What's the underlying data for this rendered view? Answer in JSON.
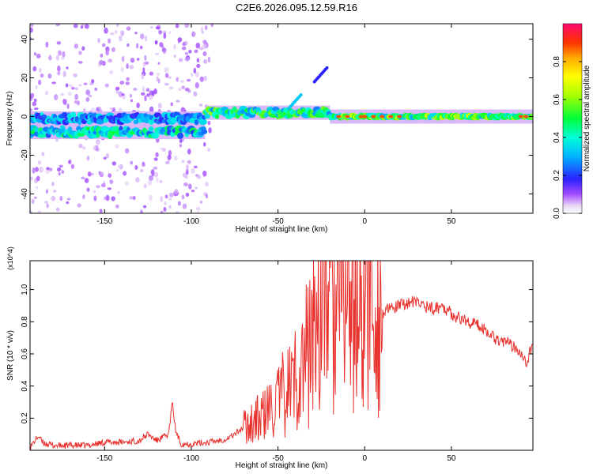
{
  "title": "C2E6.2026.095.12.59.R16",
  "colors": {
    "snr_line": "#e8322e",
    "axis": "#000000",
    "background": "#ffffff"
  },
  "chart_data": [
    {
      "type": "heatmap",
      "name": "spectrogram",
      "xlabel": "Height of straight line (km)",
      "ylabel": "Frequency (Hz)",
      "xlim": [
        -193,
        97
      ],
      "ylim": [
        -50,
        48
      ],
      "xticks": [
        -150,
        -100,
        -50,
        0,
        50
      ],
      "yticks": [
        -40,
        -20,
        0,
        20,
        40
      ],
      "colorbar": {
        "label": "Normalized spectral amplitude",
        "range": [
          0.0,
          1.0
        ],
        "ticks": [
          0.0,
          0.2,
          0.4,
          0.6,
          0.8
        ]
      },
      "bands": [
        {
          "from": -193,
          "to": -92,
          "freq": -8,
          "amplitude": 0.42,
          "note": "lower echo band"
        },
        {
          "from": -193,
          "to": -92,
          "freq": -1,
          "amplitude": 0.33,
          "note": "upper echo band"
        },
        {
          "from": -92,
          "to": -20,
          "freq": 2,
          "amplitude": 0.5,
          "note": "transition band"
        },
        {
          "from": -20,
          "to": 97,
          "freq": 0,
          "amplitude": 0.55,
          "note": "steady band"
        }
      ],
      "features": [
        {
          "x": -25,
          "freq": 22,
          "amplitude": 0.2,
          "note": "drifting streak"
        },
        {
          "x": -40,
          "freq": 8,
          "amplitude": 0.35,
          "note": "isolated blob"
        }
      ]
    },
    {
      "type": "line",
      "name": "snr",
      "xlabel": "Height of straight line (km)",
      "ylabel": "SNR (10 * v/v)",
      "y_multiplier": "(x10^4)",
      "xlim": [
        -193,
        97
      ],
      "ylim": [
        0.0,
        1.18
      ],
      "xticks": [
        -150,
        -100,
        -50,
        0,
        50
      ],
      "yticks": [
        0.2,
        0.4,
        0.6,
        0.8,
        1.0
      ],
      "series": [
        {
          "name": "SNR",
          "x": [
            -193,
            -188,
            -186,
            -180,
            -170,
            -160,
            -150,
            -140,
            -130,
            -125,
            -120,
            -113,
            -111,
            -109,
            -106,
            -100,
            -90,
            -80,
            -75,
            -70,
            -65,
            -60,
            -55,
            -50,
            -45,
            -40,
            -35,
            -30,
            -27,
            -25,
            -22,
            -20,
            -18,
            -15,
            -10,
            -5,
            0,
            5,
            10,
            15,
            20,
            25,
            30,
            35,
            40,
            45,
            50,
            55,
            60,
            65,
            70,
            75,
            80,
            85,
            90,
            93,
            97
          ],
          "values": [
            0.02,
            0.09,
            0.05,
            0.03,
            0.03,
            0.03,
            0.05,
            0.05,
            0.06,
            0.1,
            0.06,
            0.1,
            0.3,
            0.12,
            0.04,
            0.04,
            0.05,
            0.07,
            0.1,
            0.14,
            0.18,
            0.2,
            0.25,
            0.3,
            0.38,
            0.45,
            0.55,
            0.7,
            0.9,
            0.85,
            1.05,
            1.0,
            0.82,
            0.85,
            0.95,
            0.9,
            0.88,
            0.9,
            0.85,
            0.88,
            0.9,
            0.92,
            0.92,
            0.9,
            0.88,
            0.9,
            0.85,
            0.82,
            0.8,
            0.78,
            0.75,
            0.7,
            0.68,
            0.65,
            0.62,
            0.55,
            0.65
          ]
        }
      ]
    }
  ]
}
